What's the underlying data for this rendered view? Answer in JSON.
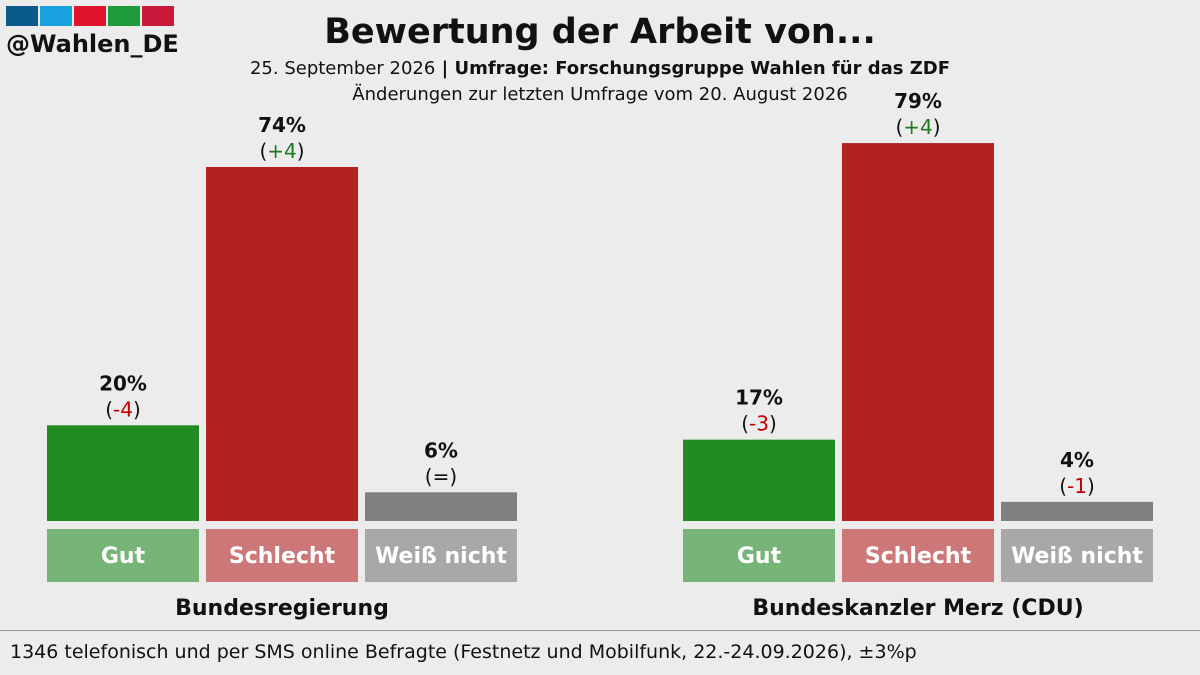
{
  "brand": {
    "handle": "@Wahlen_DE",
    "logo_colors": [
      "#0a5a8a",
      "#1aa3e0",
      "#e0142a",
      "#1f9a3a",
      "#c8193a"
    ]
  },
  "header": {
    "title": "Bewertung der Arbeit von...",
    "date": "25. September 2026",
    "separator": " | ",
    "source": "Umfrage: Forschungsgruppe Wahlen für das ZDF",
    "comparison_note": "Änderungen zur letzten Umfrage vom 20. August 2026"
  },
  "colors": {
    "gut_bar": "#228b22",
    "schlecht_bar": "#b22222",
    "weiss_bar": "#808080",
    "gut_label_bg": "#77b477",
    "schlecht_label_bg": "#cc7878",
    "weiss_label_bg": "#a8a8a8",
    "change_positive": "#1e7a1e",
    "change_negative": "#c00000",
    "change_neutral": "#111111"
  },
  "chart_data": {
    "type": "bar",
    "categories": [
      "Gut",
      "Schlecht",
      "Weiß nicht"
    ],
    "ylim": [
      0,
      100
    ],
    "unit": "%",
    "groups": [
      {
        "name": "Bundesregierung",
        "values": [
          20,
          74,
          6
        ],
        "value_labels": [
          "20%",
          "74%",
          "6%"
        ],
        "changes": [
          "(-4)",
          "(+4)",
          "(=)"
        ],
        "change_signs": [
          "negative",
          "positive",
          "neutral"
        ]
      },
      {
        "name": "Bundeskanzler Merz (CDU)",
        "values": [
          17,
          79,
          4
        ],
        "value_labels": [
          "17%",
          "79%",
          "4%"
        ],
        "changes": [
          "(-3)",
          "(+4)",
          "(-1)"
        ],
        "change_signs": [
          "negative",
          "positive",
          "negative"
        ]
      }
    ]
  },
  "footer": {
    "text": "1346 telefonisch und per SMS online Befragte (Festnetz und Mobilfunk, 22.-24.09.2026), ±3%p"
  }
}
